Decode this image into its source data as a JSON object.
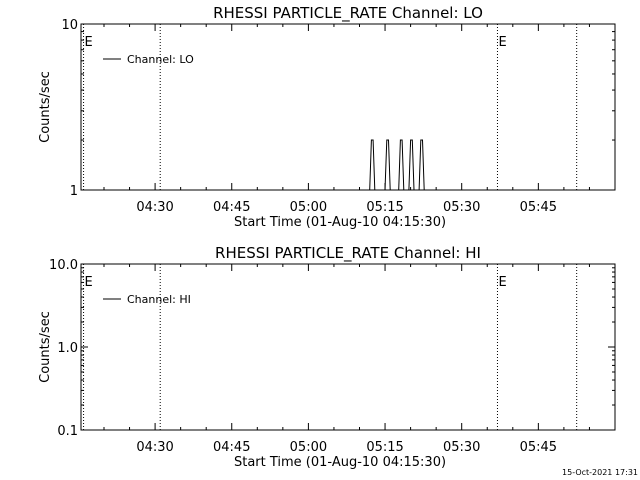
{
  "chart_data": [
    {
      "type": "line",
      "title": "RHESSI PARTICLE_RATE Channel: LO",
      "xlabel": "Start Time (01-Aug-10 04:15:30)",
      "ylabel": "Counts/sec",
      "yscale": "log",
      "xlim": [
        "04:15:30",
        "06:00:00"
      ],
      "ylim": [
        1,
        10
      ],
      "x_ticks": [
        "04:30",
        "04:45",
        "05:00",
        "05:15",
        "05:30",
        "05:45"
      ],
      "y_ticks": [
        "1",
        "10"
      ],
      "legend": {
        "position": "top-left",
        "entries": [
          "Channel: LO"
        ]
      },
      "markers": [
        {
          "label": "E",
          "x": "04:16:00"
        },
        {
          "label": "",
          "x": "04:31:00"
        },
        {
          "label": "E",
          "x": "05:37:00"
        },
        {
          "label": "",
          "x": "05:52:30"
        }
      ],
      "series": [
        {
          "name": "Channel: LO",
          "x": [
            "05:12:00",
            "05:12:20",
            "05:12:40",
            "05:13:00",
            "05:15:00",
            "05:15:20",
            "05:15:40",
            "05:16:00",
            "05:17:40",
            "05:18:00",
            "05:18:20",
            "05:18:40",
            "05:19:40",
            "05:20:00",
            "05:20:20",
            "05:20:40",
            "05:21:40",
            "05:22:00",
            "05:22:20",
            "05:22:40"
          ],
          "y": [
            1,
            2,
            2,
            1,
            1,
            2,
            2,
            1,
            1,
            2,
            2,
            1,
            1,
            2,
            2,
            1,
            1,
            2,
            2,
            1
          ]
        }
      ]
    },
    {
      "type": "line",
      "title": "RHESSI PARTICLE_RATE Channel: HI",
      "xlabel": "Start Time (01-Aug-10 04:15:30)",
      "ylabel": "Counts/sec",
      "yscale": "log",
      "xlim": [
        "04:15:30",
        "06:00:00"
      ],
      "ylim": [
        0.1,
        10
      ],
      "x_ticks": [
        "04:30",
        "04:45",
        "05:00",
        "05:15",
        "05:30",
        "05:45"
      ],
      "y_ticks": [
        "0.1",
        "1.0",
        "10.0"
      ],
      "legend": {
        "position": "top-left",
        "entries": [
          "Channel: HI"
        ]
      },
      "markers": [
        {
          "label": "E",
          "x": "04:16:00"
        },
        {
          "label": "",
          "x": "04:31:00"
        },
        {
          "label": "E",
          "x": "05:37:00"
        },
        {
          "label": "",
          "x": "05:52:30"
        }
      ],
      "series": [
        {
          "name": "Channel: HI",
          "x": [],
          "y": []
        }
      ]
    }
  ],
  "footer": {
    "timestamp": "15-Oct-2021 17:31"
  }
}
